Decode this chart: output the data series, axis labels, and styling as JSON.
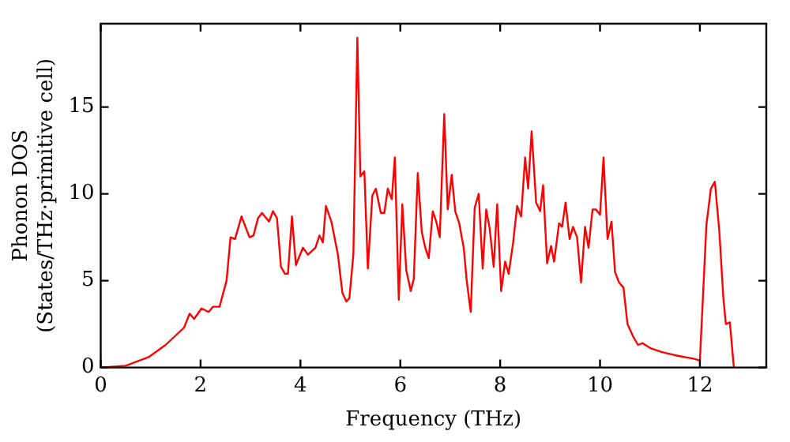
{
  "chart_data": {
    "type": "line",
    "xlabel": "Frequency (THz)",
    "ylabel": "Phonon DOS\n(States/THz·primitive cell)",
    "xlim": [
      0,
      13.33
    ],
    "ylim": [
      0,
      19.8
    ],
    "xticks": [
      0,
      2,
      4,
      6,
      8,
      10,
      12
    ],
    "yticks": [
      0,
      5,
      10,
      15
    ],
    "grid": false,
    "legend": false,
    "marker": "none",
    "line_style": "solid",
    "series": [
      {
        "color": "#ff0000",
        "x": [
          0,
          0.5,
          0.96,
          1.3,
          1.67,
          1.78,
          1.87,
          2.02,
          2.16,
          2.25,
          2.38,
          2.52,
          2.6,
          2.69,
          2.82,
          2.98,
          3.06,
          3.15,
          3.23,
          3.37,
          3.45,
          3.53,
          3.61,
          3.69,
          3.75,
          3.83,
          3.91,
          4.05,
          4.15,
          4.3,
          4.38,
          4.45,
          4.51,
          4.62,
          4.75,
          4.84,
          4.92,
          4.98,
          5.06,
          5.14,
          5.2,
          5.28,
          5.35,
          5.44,
          5.51,
          5.61,
          5.68,
          5.75,
          5.83,
          5.89,
          5.97,
          6.04,
          6.12,
          6.21,
          6.27,
          6.35,
          6.43,
          6.5,
          6.57,
          6.65,
          6.72,
          6.79,
          6.88,
          6.95,
          7.03,
          7.1,
          7.18,
          7.27,
          7.33,
          7.41,
          7.49,
          7.57,
          7.65,
          7.72,
          7.79,
          7.87,
          7.94,
          8.02,
          8.1,
          8.17,
          8.26,
          8.34,
          8.42,
          8.5,
          8.56,
          8.63,
          8.72,
          8.8,
          8.86,
          8.94,
          9.02,
          9.08,
          9.18,
          9.24,
          9.31,
          9.39,
          9.46,
          9.54,
          9.62,
          9.7,
          9.77,
          9.85,
          9.92,
          10.0,
          10.07,
          10.15,
          10.23,
          10.3,
          10.38,
          10.47,
          10.55,
          10.66,
          10.76,
          10.85,
          11.02,
          11.23,
          11.51,
          11.89,
          12.0,
          12.13,
          12.22,
          12.3,
          12.39,
          12.47,
          12.52,
          12.6,
          12.68
        ],
        "values": [
          0,
          0.1,
          0.6,
          1.3,
          2.3,
          3.1,
          2.8,
          3.4,
          3.2,
          3.5,
          3.5,
          5.0,
          7.5,
          7.4,
          8.7,
          7.5,
          7.6,
          8.6,
          8.9,
          8.4,
          9.0,
          8.6,
          5.8,
          5.4,
          5.4,
          8.7,
          5.9,
          6.9,
          6.5,
          6.9,
          7.6,
          7.2,
          9.3,
          8.4,
          6.5,
          4.3,
          3.8,
          4.0,
          6.5,
          19.0,
          11.0,
          11.3,
          5.7,
          9.9,
          10.3,
          8.9,
          8.9,
          10.3,
          9.7,
          12.1,
          3.9,
          9.4,
          5.6,
          4.4,
          5.1,
          11.2,
          7.8,
          6.9,
          6.3,
          9.0,
          8.4,
          7.5,
          14.6,
          9.1,
          11.1,
          9.0,
          8.3,
          6.9,
          5.0,
          3.2,
          9.2,
          10.0,
          5.7,
          9.1,
          8.0,
          5.8,
          9.4,
          4.4,
          6.1,
          5.4,
          7.2,
          9.3,
          8.7,
          12.1,
          10.3,
          13.6,
          9.5,
          9.0,
          10.5,
          6.0,
          7.0,
          6.1,
          8.3,
          8.1,
          9.5,
          7.4,
          8.1,
          7.5,
          4.9,
          8.1,
          6.9,
          9.1,
          9.1,
          8.8,
          12.1,
          7.4,
          8.4,
          5.5,
          4.9,
          4.6,
          2.5,
          1.8,
          1.3,
          1.4,
          1.1,
          0.9,
          0.7,
          0.5,
          0.4,
          8.2,
          10.3,
          10.7,
          7.8,
          4.0,
          2.5,
          2.6,
          0
        ]
      }
    ]
  }
}
